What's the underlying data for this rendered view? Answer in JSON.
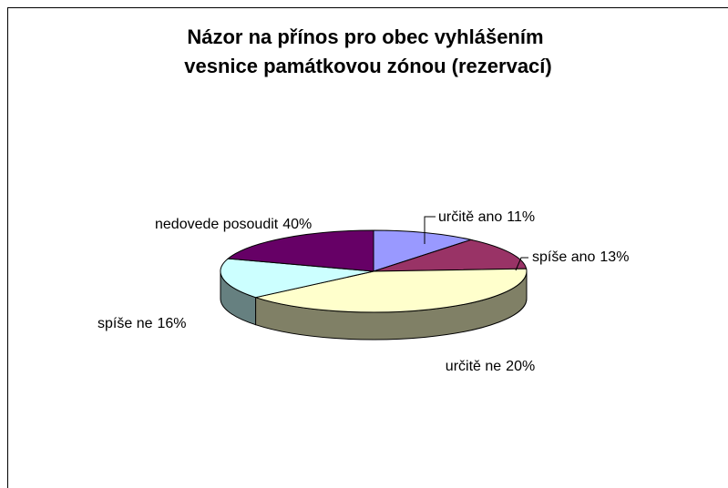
{
  "chart_data": {
    "type": "pie",
    "title": "Názor na přínos pro obec vyhlášením vesnice památkovou zónou  (rezervací)",
    "categories": [
      "určitě ano",
      "spíše ano",
      "nedovede posoudit",
      "spíše ne",
      "určitě ne"
    ],
    "values": [
      11,
      13,
      40,
      16,
      20
    ],
    "value_labels": [
      "11%",
      "13%",
      "40%",
      "16%",
      "20%"
    ],
    "colors": [
      "#9999ff",
      "#993366",
      "#ffffcc",
      "#ccffff",
      "#660066"
    ]
  }
}
